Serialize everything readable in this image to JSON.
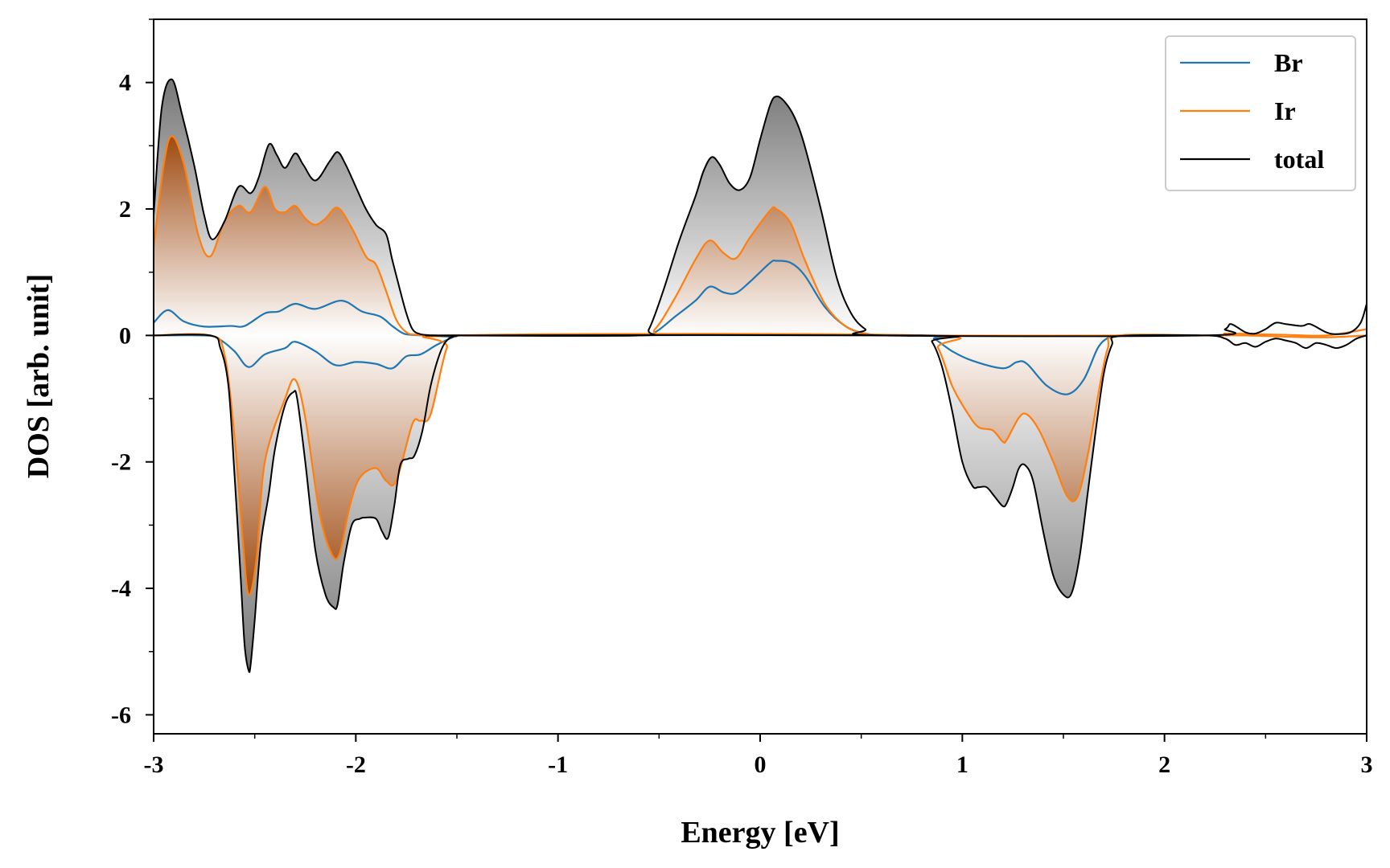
{
  "chart_data": {
    "type": "area",
    "title": "",
    "xlabel": "Energy [eV]",
    "ylabel": "DOS [arb. unit]",
    "xlim": [
      -3,
      3
    ],
    "ylim": [
      -6.3,
      5.0
    ],
    "xticks": [
      -3,
      -2,
      -1,
      0,
      1,
      2,
      3
    ],
    "yticks": [
      -6,
      -4,
      -2,
      0,
      2,
      4
    ],
    "xtick_labels": [
      "-3",
      "-2",
      "-1",
      "0",
      "1",
      "2",
      "3"
    ],
    "ytick_labels": [
      "-6",
      "-4",
      "-2",
      "0",
      "2",
      "4"
    ],
    "grid": false,
    "legend_position": "top-right",
    "spin_channels": [
      "up",
      "down"
    ],
    "series": [
      {
        "name": "Br",
        "color": "#1f77b4",
        "up": {
          "x": [
            -3.0,
            -2.93,
            -2.85,
            -2.75,
            -2.62,
            -2.55,
            -2.45,
            -2.38,
            -2.3,
            -2.2,
            -2.07,
            -1.97,
            -1.88,
            -1.82,
            -1.77,
            -1.73,
            -1.65,
            -1.5,
            -0.6,
            -0.52,
            -0.42,
            -0.32,
            -0.25,
            -0.18,
            -0.12,
            -0.05,
            0.05,
            0.08,
            0.15,
            0.22,
            0.32,
            0.42,
            0.52,
            0.62
          ],
          "y": [
            0.2,
            0.4,
            0.22,
            0.14,
            0.15,
            0.15,
            0.35,
            0.38,
            0.5,
            0.42,
            0.55,
            0.38,
            0.3,
            0.15,
            0.04,
            0.01,
            0.0,
            0.0,
            0.0,
            0.05,
            0.3,
            0.55,
            0.77,
            0.68,
            0.67,
            0.85,
            1.15,
            1.18,
            1.15,
            0.95,
            0.45,
            0.15,
            0.03,
            0.0
          ]
        },
        "down": {
          "x": [
            -3.0,
            -2.75,
            -2.68,
            -2.6,
            -2.53,
            -2.45,
            -2.35,
            -2.3,
            -2.2,
            -2.1,
            -2.0,
            -1.9,
            -1.82,
            -1.75,
            -1.68,
            -1.6,
            -1.52,
            -1.48,
            0.8,
            0.86,
            0.95,
            1.05,
            1.2,
            1.27,
            1.32,
            1.42,
            1.52,
            1.6,
            1.67,
            1.72,
            1.77
          ],
          "y": [
            0.0,
            0.0,
            -0.05,
            -0.25,
            -0.5,
            -0.3,
            -0.2,
            -0.1,
            -0.25,
            -0.47,
            -0.42,
            -0.45,
            -0.52,
            -0.33,
            -0.3,
            -0.15,
            -0.03,
            0.0,
            0.0,
            -0.05,
            -0.25,
            -0.4,
            -0.52,
            -0.42,
            -0.45,
            -0.8,
            -0.93,
            -0.7,
            -0.2,
            -0.04,
            0.0
          ]
        }
      },
      {
        "name": "Ir",
        "color": "#ff7f0e",
        "up": {
          "x": [
            -3.0,
            -2.95,
            -2.91,
            -2.85,
            -2.78,
            -2.72,
            -2.65,
            -2.58,
            -2.52,
            -2.45,
            -2.4,
            -2.35,
            -2.3,
            -2.25,
            -2.2,
            -2.15,
            -2.09,
            -2.02,
            -1.95,
            -1.9,
            -1.85,
            -1.8,
            -1.75,
            -1.7,
            -1.6,
            -1.5,
            -0.6,
            -0.52,
            -0.42,
            -0.32,
            -0.25,
            -0.18,
            -0.12,
            -0.05,
            0.05,
            0.08,
            0.15,
            0.22,
            0.32,
            0.42,
            0.52,
            0.62,
            2.2,
            2.3,
            2.45,
            2.6,
            2.8,
            3.0
          ],
          "y": [
            1.4,
            2.7,
            3.15,
            2.7,
            1.6,
            1.25,
            1.8,
            2.05,
            1.95,
            2.35,
            2.0,
            1.95,
            2.05,
            1.85,
            1.75,
            1.85,
            2.02,
            1.7,
            1.25,
            1.12,
            0.7,
            0.25,
            0.05,
            0.01,
            0.0,
            0.0,
            0.0,
            0.1,
            0.6,
            1.2,
            1.5,
            1.3,
            1.22,
            1.55,
            1.98,
            2.0,
            1.78,
            1.2,
            0.5,
            0.15,
            0.03,
            0.0,
            0.0,
            0.03,
            0.02,
            0.01,
            0.0,
            0.1
          ]
        },
        "down": {
          "x": [
            -3.0,
            -2.72,
            -2.65,
            -2.6,
            -2.56,
            -2.53,
            -2.49,
            -2.45,
            -2.35,
            -2.3,
            -2.25,
            -2.18,
            -2.12,
            -2.08,
            -2.03,
            -1.98,
            -1.9,
            -1.85,
            -1.8,
            -1.72,
            -1.68,
            -1.63,
            -1.55,
            -1.48,
            0.8,
            0.88,
            0.95,
            1.02,
            1.08,
            1.15,
            1.2,
            1.22,
            1.28,
            1.32,
            1.38,
            1.45,
            1.52,
            1.57,
            1.62,
            1.68,
            1.72,
            1.77,
            2.2,
            2.4,
            2.6,
            2.8,
            3.0
          ],
          "y": [
            0.0,
            0.0,
            -0.3,
            -1.6,
            -3.2,
            -4.1,
            -3.5,
            -2.0,
            -1.0,
            -0.7,
            -1.3,
            -2.8,
            -3.45,
            -3.45,
            -2.7,
            -2.25,
            -2.1,
            -2.3,
            -2.3,
            -1.4,
            -1.35,
            -1.25,
            -0.2,
            0.0,
            0.0,
            -0.2,
            -0.8,
            -1.2,
            -1.45,
            -1.5,
            -1.68,
            -1.65,
            -1.3,
            -1.25,
            -1.5,
            -2.0,
            -2.55,
            -2.55,
            -1.9,
            -0.8,
            -0.2,
            0.0,
            0.0,
            0.0,
            -0.02,
            -0.03,
            0.0
          ]
        }
      },
      {
        "name": "total",
        "color": "#000000",
        "up": {
          "x": [
            -3.0,
            -2.96,
            -2.91,
            -2.86,
            -2.8,
            -2.75,
            -2.71,
            -2.65,
            -2.58,
            -2.52,
            -2.48,
            -2.43,
            -2.39,
            -2.35,
            -2.3,
            -2.26,
            -2.2,
            -2.13,
            -2.09,
            -2.05,
            -2.0,
            -1.95,
            -1.9,
            -1.85,
            -1.82,
            -1.78,
            -1.75,
            -1.72,
            -1.68,
            -1.6,
            -1.5,
            -0.6,
            -0.55,
            -0.48,
            -0.4,
            -0.32,
            -0.28,
            -0.24,
            -0.2,
            -0.15,
            -0.1,
            -0.05,
            0.0,
            0.05,
            0.08,
            0.12,
            0.17,
            0.22,
            0.3,
            0.38,
            0.45,
            0.52,
            0.6,
            2.2,
            2.3,
            2.33,
            2.4,
            2.45,
            2.5,
            2.55,
            2.6,
            2.68,
            2.72,
            2.8,
            2.85,
            2.92,
            2.97,
            3.0
          ],
          "y": [
            1.9,
            3.6,
            4.05,
            3.5,
            2.7,
            1.9,
            1.52,
            1.8,
            2.35,
            2.25,
            2.5,
            3.02,
            2.85,
            2.65,
            2.88,
            2.7,
            2.45,
            2.75,
            2.9,
            2.7,
            2.35,
            2.0,
            1.75,
            1.6,
            1.2,
            0.7,
            0.35,
            0.1,
            0.02,
            0.0,
            0.0,
            0.0,
            0.1,
            0.7,
            1.5,
            2.2,
            2.6,
            2.82,
            2.7,
            2.4,
            2.3,
            2.5,
            3.1,
            3.65,
            3.78,
            3.7,
            3.45,
            3.0,
            2.0,
            0.9,
            0.35,
            0.1,
            0.0,
            0.0,
            0.1,
            0.18,
            0.05,
            0.03,
            0.1,
            0.2,
            0.18,
            0.15,
            0.18,
            0.05,
            0.02,
            0.05,
            0.2,
            0.5
          ]
        },
        "down": {
          "x": [
            -3.0,
            -2.72,
            -2.67,
            -2.63,
            -2.6,
            -2.57,
            -2.55,
            -2.53,
            -2.52,
            -2.5,
            -2.47,
            -2.43,
            -2.4,
            -2.35,
            -2.31,
            -2.29,
            -2.25,
            -2.2,
            -2.15,
            -2.11,
            -2.09,
            -2.06,
            -2.02,
            -1.98,
            -1.95,
            -1.9,
            -1.87,
            -1.84,
            -1.81,
            -1.78,
            -1.74,
            -1.71,
            -1.67,
            -1.63,
            -1.58,
            -1.54,
            -1.5,
            -1.48,
            0.8,
            0.85,
            0.9,
            0.95,
            1.0,
            1.05,
            1.08,
            1.12,
            1.16,
            1.2,
            1.22,
            1.25,
            1.28,
            1.31,
            1.35,
            1.4,
            1.45,
            1.5,
            1.54,
            1.58,
            1.62,
            1.66,
            1.7,
            1.74,
            1.78,
            2.2,
            2.3,
            2.35,
            2.4,
            2.45,
            2.5,
            2.55,
            2.6,
            2.65,
            2.7,
            2.75,
            2.8,
            2.85,
            2.9,
            2.95,
            3.0
          ],
          "y": [
            0.0,
            0.0,
            -0.2,
            -0.8,
            -2.2,
            -3.8,
            -4.9,
            -5.3,
            -5.2,
            -4.5,
            -3.3,
            -2.5,
            -1.8,
            -1.1,
            -0.9,
            -1.0,
            -2.0,
            -3.4,
            -4.1,
            -4.3,
            -4.25,
            -3.6,
            -3.0,
            -2.9,
            -2.88,
            -2.9,
            -3.1,
            -3.2,
            -2.7,
            -2.05,
            -1.95,
            -1.9,
            -1.5,
            -0.8,
            -0.25,
            -0.05,
            -0.01,
            0.0,
            0.0,
            -0.1,
            -0.5,
            -1.2,
            -2.0,
            -2.38,
            -2.4,
            -2.4,
            -2.55,
            -2.7,
            -2.65,
            -2.4,
            -2.1,
            -2.05,
            -2.3,
            -3.1,
            -3.8,
            -4.1,
            -4.08,
            -3.5,
            -2.5,
            -1.5,
            -0.6,
            -0.15,
            -0.01,
            0.0,
            -0.05,
            -0.15,
            -0.12,
            -0.18,
            -0.1,
            -0.05,
            -0.08,
            -0.12,
            -0.2,
            -0.12,
            -0.15,
            -0.2,
            -0.15,
            -0.05,
            0.0
          ]
        }
      }
    ]
  }
}
